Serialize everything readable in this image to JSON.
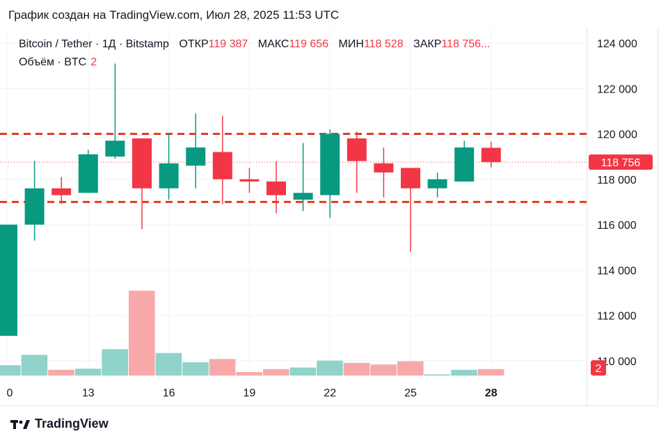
{
  "header": {
    "caption": "График создан на TradingView.com, Июл 28, 2025 11:53 UTC"
  },
  "legend": {
    "symbol": "Bitcoin / Tether · 1Д · Bitstamp",
    "open_label": "ОТКР",
    "open_value": "119 387",
    "high_label": "МАКС",
    "high_value": "119 656",
    "low_label": "МИН",
    "low_value": "118 528",
    "close_label": "ЗАКР",
    "close_value": "118 756...",
    "volume_label": "Объём · BTC",
    "volume_value": "2"
  },
  "footer": {
    "brand": "TradingView"
  },
  "colors": {
    "up": "#089981",
    "down": "#f23645",
    "vol_up": "#8fd3ca",
    "vol_down": "#f7a9a9",
    "level_line": "#e8391e",
    "last_price": "#f23645"
  },
  "chart_data": {
    "type": "candlestick",
    "x_tick_labels": [
      "0",
      "13",
      "16",
      "19",
      "22",
      "25",
      "28"
    ],
    "y_tick_labels": [
      "124 000",
      "122 000",
      "120 000",
      "118 000",
      "116 000",
      "114 000",
      "112 000",
      "110 000"
    ],
    "ylim": [
      109000,
      124700
    ],
    "last_price_label": "118 756",
    "last_price": 118756,
    "volume_badge": "2",
    "horizontal_levels": [
      120000,
      117000
    ],
    "candles": [
      {
        "x": "10",
        "open": 111100,
        "high": 116000,
        "low": 111100,
        "close": 116000
      },
      {
        "x": "11",
        "open": 116000,
        "high": 118800,
        "low": 115300,
        "close": 117600
      },
      {
        "x": "12",
        "open": 117600,
        "high": 118100,
        "low": 116900,
        "close": 117300
      },
      {
        "x": "13",
        "open": 117400,
        "high": 119300,
        "low": 117400,
        "close": 119100
      },
      {
        "x": "14",
        "open": 119000,
        "high": 123100,
        "low": 118900,
        "close": 119700
      },
      {
        "x": "15",
        "open": 119800,
        "high": 119800,
        "low": 115800,
        "close": 117600
      },
      {
        "x": "16",
        "open": 117600,
        "high": 120000,
        "low": 117100,
        "close": 118700
      },
      {
        "x": "17",
        "open": 118600,
        "high": 120900,
        "low": 117600,
        "close": 119400
      },
      {
        "x": "18",
        "open": 119200,
        "high": 120800,
        "low": 116900,
        "close": 118000
      },
      {
        "x": "19",
        "open": 118000,
        "high": 118500,
        "low": 117400,
        "close": 117900
      },
      {
        "x": "20",
        "open": 117900,
        "high": 118800,
        "low": 116500,
        "close": 117300
      },
      {
        "x": "21",
        "open": 117100,
        "high": 119600,
        "low": 116600,
        "close": 117400
      },
      {
        "x": "22",
        "open": 117300,
        "high": 120200,
        "low": 116300,
        "close": 120000
      },
      {
        "x": "23",
        "open": 119800,
        "high": 120100,
        "low": 117400,
        "close": 118800
      },
      {
        "x": "24",
        "open": 118700,
        "high": 119400,
        "low": 117200,
        "close": 118300
      },
      {
        "x": "25",
        "open": 118500,
        "high": 118500,
        "low": 114800,
        "close": 117600
      },
      {
        "x": "26",
        "open": 117600,
        "high": 118300,
        "low": 117200,
        "close": 118000
      },
      {
        "x": "27",
        "open": 117900,
        "high": 119700,
        "low": 117900,
        "close": 119400
      },
      {
        "x": "28",
        "open": 119387,
        "high": 119656,
        "low": 118528,
        "close": 118756
      }
    ],
    "volumes": [
      0.45,
      0.9,
      0.25,
      0.3,
      1.15,
      3.7,
      0.98,
      0.58,
      0.72,
      0.15,
      0.28,
      0.35,
      0.65,
      0.55,
      0.48,
      0.62,
      0.05,
      0.25,
      0.28
    ]
  }
}
